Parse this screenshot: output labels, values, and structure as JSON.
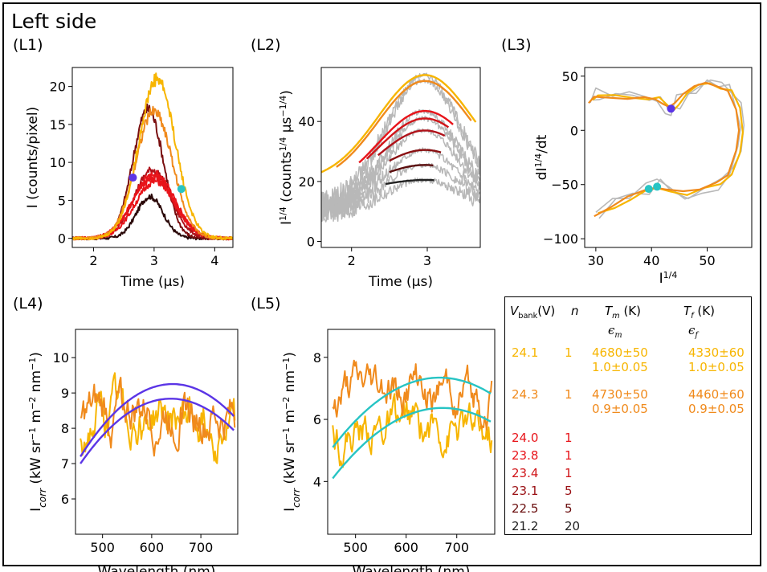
{
  "page_title": "Left side",
  "panels": {
    "L1": "(L1)",
    "L2": "(L2)",
    "L3": "(L3)",
    "L4": "(L4)",
    "L5": "(L5)"
  },
  "chart_data": [
    {
      "id": "L1",
      "type": "line",
      "xlabel": "Time (μs)",
      "ylabel": "I (counts/pixel)",
      "xlim": [
        1.65,
        4.3
      ],
      "ylim": [
        -1.2,
        22.5
      ],
      "xticks": [
        2,
        3,
        4
      ],
      "yticks": [
        0,
        5,
        10,
        15,
        20
      ],
      "series": [
        {
          "name": "24.1 V",
          "color": "#f7b500",
          "peak": 21.0,
          "center": 3.05,
          "width": 0.3
        },
        {
          "name": "24.3 V",
          "color": "#f08a1c",
          "peak": 16.8,
          "center": 3.0,
          "width": 0.3
        },
        {
          "name": "24.0 V",
          "color": "#e8141a",
          "peak": 8.5,
          "center": 3.0,
          "width": 0.34
        },
        {
          "name": "23.8 V",
          "color": "#e8141a",
          "peak": 8.0,
          "center": 2.98,
          "width": 0.34
        },
        {
          "name": "23.4 V",
          "color": "#e8141a",
          "peak": 7.5,
          "center": 3.02,
          "width": 0.33
        },
        {
          "name": "23.1 V",
          "color": "#b0121a",
          "peak": 9.0,
          "center": 2.97,
          "width": 0.3
        },
        {
          "name": "22.5 V",
          "color": "#7a0f10",
          "peak": 17.0,
          "center": 2.9,
          "width": 0.25
        },
        {
          "name": "21.2 V",
          "color": "#2a0808",
          "peak": 5.5,
          "center": 2.93,
          "width": 0.22
        }
      ],
      "markers": [
        {
          "x": 2.65,
          "y": 8.0,
          "color": "#5b35e6"
        },
        {
          "x": 3.45,
          "y": 6.5,
          "color": "#27c4c4"
        }
      ]
    },
    {
      "id": "L2",
      "type": "line",
      "xlabel": "Time (μs)",
      "ylabel": "I¹ᐟ⁴ (counts¹ᐟ⁴ μs⁻¹ᐟ⁴)",
      "xlim": [
        1.6,
        3.7
      ],
      "ylim": [
        -2,
        58
      ],
      "xticks": [
        2,
        3
      ],
      "yticks": [
        0,
        20,
        40
      ],
      "series": [
        {
          "name": "24.1 V",
          "color": "#f7b500",
          "peak": 55.5,
          "base": 20
        },
        {
          "name": "24.3 V",
          "color": "#f08a1c",
          "peak": 53.5,
          "base": 19
        },
        {
          "name": "24.0 V",
          "color": "#e8141a",
          "peak": 43.5,
          "base": 16
        },
        {
          "name": "23.8 V",
          "color": "#d01418",
          "peak": 41.0,
          "base": 16
        },
        {
          "name": "23.4 V",
          "color": "#b0121a",
          "peak": 37.0,
          "base": 16
        },
        {
          "name": "23.1 V",
          "color": "#8a1012",
          "peak": 30.5,
          "base": 16
        },
        {
          "name": "22.5 V",
          "color": "#5a0c0c",
          "peak": 25.5,
          "base": 16
        },
        {
          "name": "21.2 V",
          "color": "#222222",
          "peak": 20.5,
          "base": 16
        }
      ]
    },
    {
      "id": "L3",
      "type": "line",
      "xlabel": "I¹ᐟ⁴",
      "ylabel": "dI¹ᐟ⁴/dt",
      "xlim": [
        28,
        58
      ],
      "ylim": [
        -108,
        58
      ],
      "xticks": [
        30,
        40,
        50
      ],
      "yticks": [
        -100,
        -50,
        0,
        50
      ],
      "series": [
        {
          "name": "24.1 V",
          "color": "#f7b500"
        },
        {
          "name": "24.3 V",
          "color": "#f08a1c"
        }
      ],
      "markers": [
        {
          "x": 43.5,
          "y": 20,
          "color": "#5b35e6"
        },
        {
          "x": 39.5,
          "y": -54,
          "color": "#27c4c4"
        },
        {
          "x": 41.0,
          "y": -52,
          "color": "#27c4c4"
        }
      ]
    },
    {
      "id": "L4",
      "type": "line",
      "xlabel": "Wavelength (nm)",
      "ylabel": "I_corr (kW sr⁻¹ m⁻² nm⁻¹)",
      "xlim": [
        445,
        775
      ],
      "ylim": [
        5.0,
        10.8
      ],
      "xticks": [
        500,
        600,
        700
      ],
      "yticks": [
        6,
        7,
        8,
        9,
        10
      ],
      "series": [
        {
          "name": "24.1 V data",
          "color": "#f7b500",
          "mean": 8.4
        },
        {
          "name": "24.3 V data",
          "color": "#f08a1c",
          "mean": 8.6
        },
        {
          "name": "24.1 V fit",
          "color": "#5b35e6",
          "start": 7.0,
          "peak": 8.8,
          "end": 7.9
        },
        {
          "name": "24.3 V fit",
          "color": "#5b35e6",
          "start": 7.2,
          "peak": 9.2,
          "end": 8.3
        }
      ]
    },
    {
      "id": "L5",
      "type": "line",
      "xlabel": "Wavelength (nm)",
      "ylabel": "I_corr (kW sr⁻¹ m⁻² nm⁻¹)",
      "xlim": [
        445,
        775
      ],
      "ylim": [
        2.3,
        8.9
      ],
      "xticks": [
        500,
        600,
        700
      ],
      "yticks": [
        4,
        6,
        8
      ],
      "series": [
        {
          "name": "24.1 V data",
          "color": "#f7b500",
          "mean": 5.8
        },
        {
          "name": "24.3 V data",
          "color": "#f08a1c",
          "mean": 6.9
        },
        {
          "name": "24.1 V fit",
          "color": "#27c4c4",
          "start": 4.1,
          "peak": 6.2,
          "end": 5.9
        },
        {
          "name": "24.3 V fit",
          "color": "#27c4c4",
          "start": 5.1,
          "peak": 7.2,
          "end": 6.8
        }
      ]
    }
  ],
  "legend_table": {
    "headers": {
      "vbank": "V",
      "vbank_sub": "bank",
      "vbank_unit": "(V)",
      "n": "n",
      "tm": "T",
      "tm_sub": "m",
      "tm_unit": " (K)",
      "tf": "T",
      "tf_sub": "f",
      "tf_unit": " (K)",
      "em": "ϵ",
      "em_sub": "m",
      "ef": "ϵ",
      "ef_sub": "f"
    },
    "rows": [
      {
        "v": "24.1",
        "n": "1",
        "tm": "4680±50",
        "tf": "4330±60",
        "em": "1.0±0.05",
        "ef": "1.0±0.05",
        "color": "#f7b500"
      },
      {
        "v": "24.3",
        "n": "1",
        "tm": "4730±50",
        "tf": "4460±60",
        "em": "0.9±0.05",
        "ef": "0.9±0.05",
        "color": "#f08a1c"
      },
      {
        "v": "24.0",
        "n": "1",
        "color": "#e8141a"
      },
      {
        "v": "23.8",
        "n": "1",
        "color": "#e8141a"
      },
      {
        "v": "23.4",
        "n": "1",
        "color": "#d01418"
      },
      {
        "v": "23.1",
        "n": "5",
        "color": "#9a1014"
      },
      {
        "v": "22.5",
        "n": "5",
        "color": "#6a0e0e"
      },
      {
        "v": "21.2",
        "n": "20",
        "color": "#222222"
      }
    ]
  }
}
